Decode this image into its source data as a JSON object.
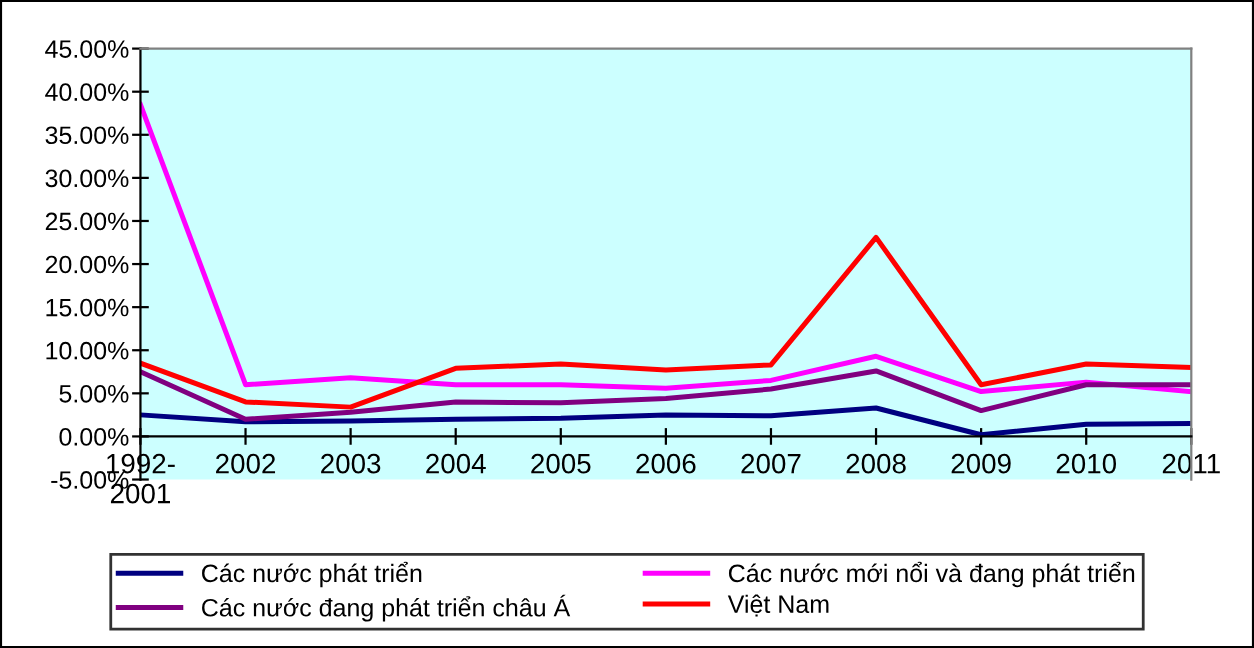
{
  "chart_data": {
    "type": "line",
    "categories": [
      "1992-\n2001",
      "2002",
      "2003",
      "2004",
      "2005",
      "2006",
      "2007",
      "2008",
      "2009",
      "2010",
      "2011"
    ],
    "series": [
      {
        "name": "Các nước phát triển",
        "color": "#000080",
        "values": [
          2.5,
          1.7,
          1.8,
          2.0,
          2.1,
          2.5,
          2.4,
          3.3,
          0.2,
          1.4,
          1.5
        ]
      },
      {
        "name": "Các nước mới nổi và đang phát triển",
        "color": "#ff00ff",
        "values": [
          38.5,
          6.0,
          6.8,
          6.0,
          6.0,
          5.6,
          6.5,
          9.3,
          5.2,
          6.3,
          5.2
        ]
      },
      {
        "name": "Các nước đang phát triển châu Á",
        "color": "#800080",
        "values": [
          7.5,
          2.0,
          2.8,
          4.0,
          3.9,
          4.4,
          5.5,
          7.6,
          3.0,
          6.0,
          6.0
        ]
      },
      {
        "name": "Việt Nam",
        "color": "#ff0000",
        "values": [
          8.5,
          4.0,
          3.4,
          7.9,
          8.4,
          7.7,
          8.3,
          23.1,
          6.0,
          8.4,
          8.0
        ]
      }
    ],
    "ylim": [
      -5,
      45
    ],
    "yticks": [
      {
        "value": -5,
        "label": "-5.00%"
      },
      {
        "value": 0,
        "label": "0.00%"
      },
      {
        "value": 5,
        "label": "5.00%"
      },
      {
        "value": 10,
        "label": "10.00%"
      },
      {
        "value": 15,
        "label": "15.00%"
      },
      {
        "value": 20,
        "label": "20.00%"
      },
      {
        "value": 25,
        "label": "25.00%"
      },
      {
        "value": 30,
        "label": "30.00%"
      },
      {
        "value": 35,
        "label": "35.00%"
      },
      {
        "value": 40,
        "label": "40.00%"
      },
      {
        "value": 45,
        "label": "45.00%"
      }
    ],
    "legend": "bottom",
    "marker": "none",
    "line_style": "solid"
  }
}
